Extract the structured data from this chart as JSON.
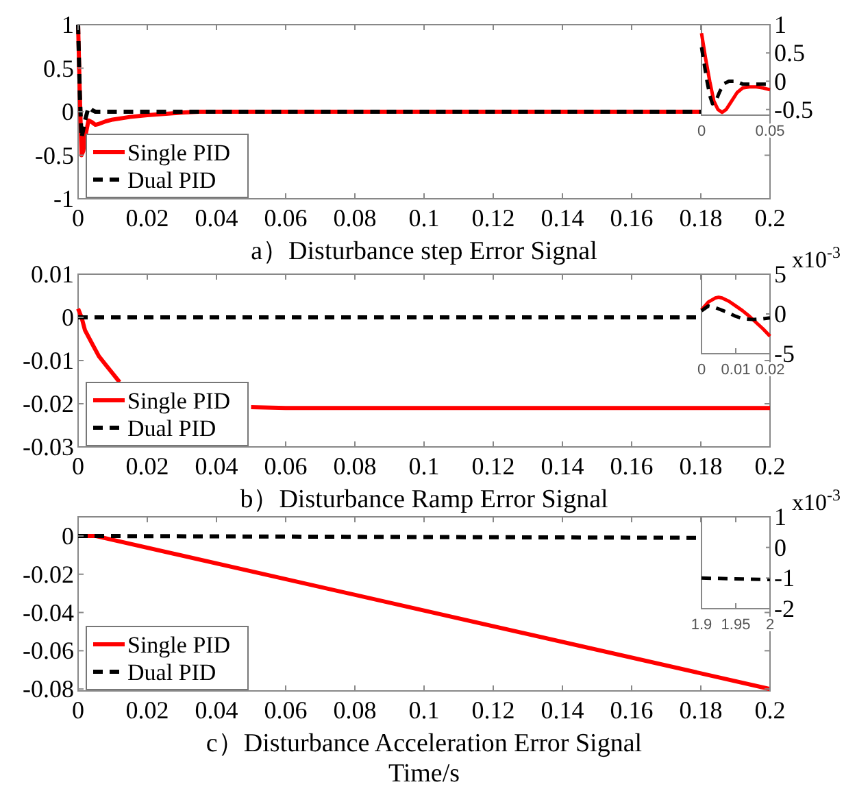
{
  "chart_data": [
    {
      "type": "line",
      "title": "a）Disturbance step Error  Signal",
      "xlim": [
        0,
        0.2
      ],
      "xticks": [
        0,
        0.02,
        0.04,
        0.06,
        0.08,
        0.1,
        0.12,
        0.14,
        0.16,
        0.18,
        0.2
      ],
      "ylim": [
        -1,
        1
      ],
      "yticks": [
        -1,
        -0.5,
        0,
        0.5,
        1
      ],
      "legend": "bottom left",
      "series": [
        {
          "name": "Single PID",
          "color": "#ff0000",
          "line_style": "solid",
          "x": [
            0,
            0.0005,
            0.001,
            0.0015,
            0.002,
            0.003,
            0.004,
            0.005,
            0.006,
            0.008,
            0.01,
            0.015,
            0.02,
            0.03,
            0.035,
            0.18
          ],
          "values": [
            1,
            0.2,
            -0.5,
            -0.45,
            -0.3,
            -0.1,
            -0.12,
            -0.15,
            -0.14,
            -0.11,
            -0.09,
            -0.06,
            -0.04,
            -0.01,
            0,
            0
          ]
        },
        {
          "name": "Dual PID",
          "color": "#000000",
          "line_style": "dashed",
          "x": [
            0,
            0.0005,
            0.001,
            0.002,
            0.003,
            0.004,
            0.005,
            0.18
          ],
          "values": [
            1,
            0.2,
            -0.3,
            -0.1,
            0.05,
            0.02,
            0,
            0
          ]
        }
      ]
    },
    {
      "type": "line",
      "xlim": [
        0,
        0.05
      ],
      "xticks": [
        0,
        0.05
      ],
      "y2lim": [
        -0.6,
        1
      ],
      "y2ticks": [
        -0.5,
        0,
        0.5,
        1
      ],
      "series": [
        {
          "color": "#ff0000",
          "line_style": "solid",
          "axis": "y2",
          "x": [
            0,
            0.003,
            0.006,
            0.009,
            0.012,
            0.015,
            0.018,
            0.022,
            0.026,
            0.03,
            0.035,
            0.04,
            0.045,
            0.05
          ],
          "values": [
            0.85,
            0.4,
            0,
            -0.35,
            -0.5,
            -0.55,
            -0.5,
            -0.35,
            -0.2,
            -0.12,
            -0.1,
            -0.1,
            -0.12,
            -0.15
          ]
        },
        {
          "color": "#000000",
          "line_style": "dashed",
          "axis": "y2",
          "x": [
            0,
            0.002,
            0.004,
            0.006,
            0.008,
            0.01,
            0.013,
            0.016,
            0.02,
            0.025,
            0.03,
            0.04,
            0.05
          ],
          "values": [
            0.6,
            0.3,
            0,
            -0.25,
            -0.4,
            -0.38,
            -0.2,
            -0.05,
            0,
            0,
            -0.05,
            -0.05,
            -0.05
          ]
        }
      ]
    },
    {
      "type": "line",
      "title": "b）Disturbance Ramp Error  Signal",
      "xlim": [
        0,
        0.2
      ],
      "xticks": [
        0,
        0.02,
        0.04,
        0.06,
        0.08,
        0.1,
        0.12,
        0.14,
        0.16,
        0.18,
        0.2
      ],
      "ylim": [
        -0.03,
        0.01
      ],
      "yticks": [
        -0.03,
        -0.02,
        -0.01,
        0,
        0.01
      ],
      "legend": "bottom left",
      "series": [
        {
          "name": "Single PID",
          "color": "#ff0000",
          "line_style": "solid",
          "x": [
            0,
            0.001,
            0.002,
            0.004,
            0.006,
            0.008,
            0.01,
            0.012,
            0.015,
            0.018,
            0.02,
            0.025,
            0.03,
            0.04,
            0.05,
            0.06,
            0.2
          ],
          "values": [
            0.002,
            0,
            -0.003,
            -0.006,
            -0.009,
            -0.011,
            -0.013,
            -0.015,
            null,
            null,
            null,
            null,
            null,
            null,
            -0.0208,
            -0.021,
            -0.021
          ]
        },
        {
          "name": "Dual PID",
          "color": "#000000",
          "line_style": "dashed",
          "x": [
            0,
            0.18
          ],
          "values": [
            0,
            0
          ]
        }
      ]
    },
    {
      "type": "line",
      "xlim": [
        0,
        0.02
      ],
      "xticks": [
        0,
        0.01,
        0.02
      ],
      "y2lim": [
        -5,
        5
      ],
      "y2ticks": [
        -5,
        0,
        5
      ],
      "annotations": [
        "x10$^{-3}$"
      ],
      "series": [
        {
          "color": "#ff0000",
          "line_style": "solid",
          "axis": "y2",
          "x": [
            0,
            0.002,
            0.004,
            0.005,
            0.006,
            0.008,
            0.01,
            0.012,
            0.014,
            0.016,
            0.018,
            0.02
          ],
          "values": [
            0.5,
            1.5,
            2,
            2.1,
            2,
            1.6,
            1,
            0.4,
            -0.3,
            -1.1,
            -1.9,
            -2.8
          ]
        },
        {
          "color": "#000000",
          "line_style": "dashed",
          "axis": "y2",
          "x": [
            0,
            0.002,
            0.004,
            0.007,
            0.01,
            0.012,
            0.015,
            0.018,
            0.02
          ],
          "values": [
            0.4,
            1,
            0.8,
            0.3,
            -0.3,
            -0.6,
            -0.7,
            -0.6,
            -0.5
          ]
        }
      ]
    },
    {
      "type": "line",
      "title": "c）Disturbance Acceleration Error  Signal",
      "xlabel": "Time/s",
      "xlim": [
        0,
        0.2
      ],
      "xticks": [
        0,
        0.02,
        0.04,
        0.06,
        0.08,
        0.1,
        0.12,
        0.14,
        0.16,
        0.18,
        0.2
      ],
      "ylim": [
        -0.081,
        0.01
      ],
      "yticks": [
        -0.08,
        -0.06,
        -0.04,
        -0.02,
        0
      ],
      "legend": "bottom left",
      "series": [
        {
          "name": "Single PID",
          "color": "#ff0000",
          "line_style": "solid",
          "x": [
            0,
            0.005,
            0.2
          ],
          "values": [
            0,
            0,
            -0.08
          ]
        },
        {
          "name": "Dual PID",
          "color": "#000000",
          "line_style": "dashed",
          "x": [
            0,
            0.18
          ],
          "values": [
            0,
            -0.001
          ]
        }
      ]
    },
    {
      "type": "line",
      "xlim": [
        1.9,
        2
      ],
      "xticks": [
        1.9,
        1.95,
        2
      ],
      "y2lim": [
        -2,
        1
      ],
      "y2ticks": [
        -2,
        -1,
        0,
        1
      ],
      "annotations": [
        "x10$^{-3}$"
      ],
      "series": [
        {
          "color": "#000000",
          "line_style": "dashed",
          "axis": "y2",
          "x": [
            1.9,
            2
          ],
          "values": [
            -1,
            -1.05
          ]
        }
      ]
    }
  ]
}
